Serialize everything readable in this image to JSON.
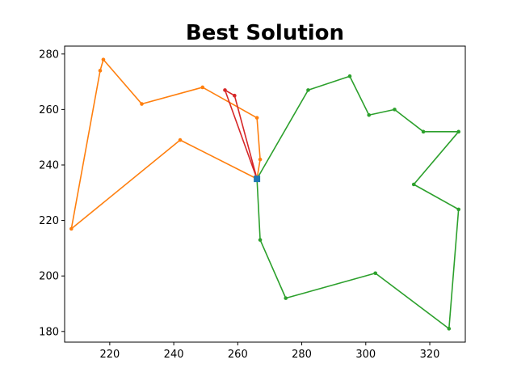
{
  "chart_data": {
    "type": "line",
    "title": "Best Solution",
    "xlabel": "",
    "ylabel": "",
    "xlim": [
      205.9,
      331.1
    ],
    "ylim": [
      176.15,
      282.85
    ],
    "xticks": [
      220,
      240,
      260,
      280,
      300,
      320
    ],
    "yticks": [
      180,
      200,
      220,
      240,
      260,
      280
    ],
    "grid": false,
    "depot": {
      "x": 266,
      "y": 235,
      "color": "#1f77b4"
    },
    "series": [
      {
        "color": "#ff7f0e",
        "points": [
          [
            266,
            235
          ],
          [
            267,
            242
          ],
          [
            266,
            257
          ],
          [
            249,
            268
          ],
          [
            230,
            262
          ],
          [
            218,
            278
          ],
          [
            217,
            274
          ],
          [
            208,
            217
          ],
          [
            242,
            249
          ],
          [
            266,
            235
          ]
        ]
      },
      {
        "color": "#2ca02c",
        "points": [
          [
            266,
            235
          ],
          [
            282,
            267
          ],
          [
            295,
            272
          ],
          [
            301,
            258
          ],
          [
            309,
            260
          ],
          [
            318,
            252
          ],
          [
            329,
            252
          ],
          [
            315,
            233
          ],
          [
            329,
            224
          ],
          [
            326,
            181
          ],
          [
            303,
            201
          ],
          [
            275,
            192
          ],
          [
            267,
            213
          ],
          [
            266,
            235
          ]
        ]
      },
      {
        "color": "#d62728",
        "points": [
          [
            266,
            235
          ],
          [
            256,
            267
          ],
          [
            259,
            265
          ],
          [
            266,
            235
          ]
        ]
      }
    ]
  }
}
